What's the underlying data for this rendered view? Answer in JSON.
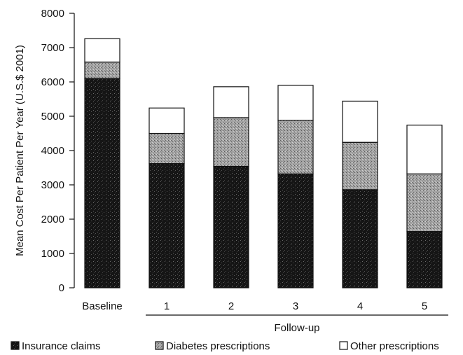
{
  "chart_data": {
    "type": "bar",
    "stacked": true,
    "categories": [
      "Baseline",
      "1",
      "2",
      "3",
      "4",
      "5"
    ],
    "group_label": "Follow-up",
    "ylabel": "Mean Cost Per Patient Per Year (U.S.$ 2001)",
    "xlabel": "",
    "ylim": [
      0,
      8000
    ],
    "yticks": [
      "0",
      "1000",
      "2000",
      "3000",
      "4000",
      "5000",
      "6000",
      "7000",
      "8000"
    ],
    "grid": false,
    "legend_position": "bottom",
    "series": [
      {
        "name": "Insurance claims",
        "values": [
          6100,
          3620,
          3540,
          3320,
          2860,
          1640
        ],
        "color": "#151515"
      },
      {
        "name": "Diabetes prescriptions",
        "values": [
          480,
          880,
          1420,
          1560,
          1380,
          1680
        ],
        "color": "#9a9a9a"
      },
      {
        "name": "Other prescriptions",
        "values": [
          680,
          740,
          900,
          1020,
          1200,
          1420
        ],
        "color": "#ffffff"
      }
    ]
  }
}
